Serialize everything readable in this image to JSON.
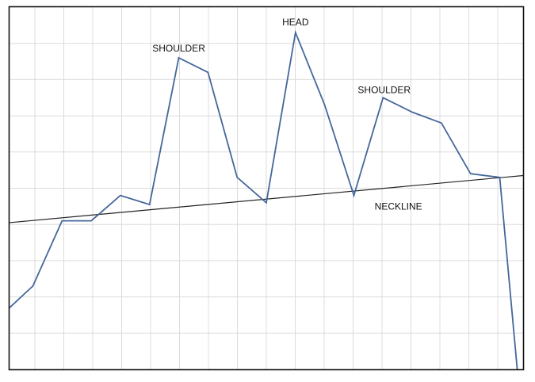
{
  "chart_data": {
    "type": "line",
    "title": "",
    "xlabel": "",
    "ylabel": "",
    "grid": true,
    "xlim": [
      0,
      17.6
    ],
    "ylim": [
      0,
      10
    ],
    "x": [
      0,
      0.8,
      1.8,
      2.8,
      3.8,
      4.8,
      5.8,
      6.8,
      7.8,
      8.8,
      9.8,
      10.8,
      11.8,
      12.8,
      13.8,
      14.8,
      15.8,
      16.8,
      17.4
    ],
    "series": [
      {
        "name": "",
        "color": "#44679a",
        "values": [
          1.7,
          2.3,
          4.1,
          4.1,
          4.8,
          4.55,
          8.6,
          8.2,
          5.3,
          4.6,
          9.3,
          7.3,
          4.8,
          7.5,
          7.1,
          6.8,
          5.4,
          5.3,
          0
        ]
      }
    ],
    "neckline": {
      "start": [
        0,
        4.05
      ],
      "end": [
        17.6,
        5.35
      ],
      "color": "#222222"
    },
    "annotations": [
      {
        "text": "SHOULDER",
        "x": 5.8,
        "y": 8.6
      },
      {
        "text": "HEAD",
        "x": 9.8,
        "y": 9.3
      },
      {
        "text": "SHOULDER",
        "x": 12.8,
        "y": 7.5
      },
      {
        "text": "NECKLINE",
        "x": 13.3,
        "y": 4.65
      }
    ]
  }
}
